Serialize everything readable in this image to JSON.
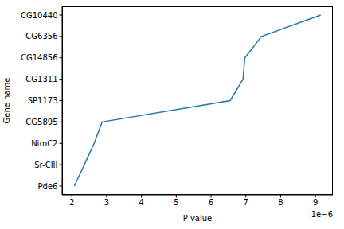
{
  "chart_data": {
    "type": "line",
    "orientation": "horizontal",
    "x_label": "P-value",
    "y_label": "Gene name",
    "categories": [
      "Pde6",
      "Sr-CIII",
      "NimC2",
      "CG5895",
      "SP1173",
      "CG1311",
      "CG14856",
      "CG6356",
      "CG10440"
    ],
    "values": [
      2.07,
      2.36,
      2.64,
      2.87,
      6.55,
      6.92,
      6.97,
      7.45,
      9.15
    ],
    "color": "#1f77b4",
    "xlim": [
      1.72,
      9.5
    ],
    "xticks": [
      2,
      3,
      4,
      5,
      6,
      7,
      8,
      9
    ],
    "annotations": [
      "1e−6"
    ]
  }
}
